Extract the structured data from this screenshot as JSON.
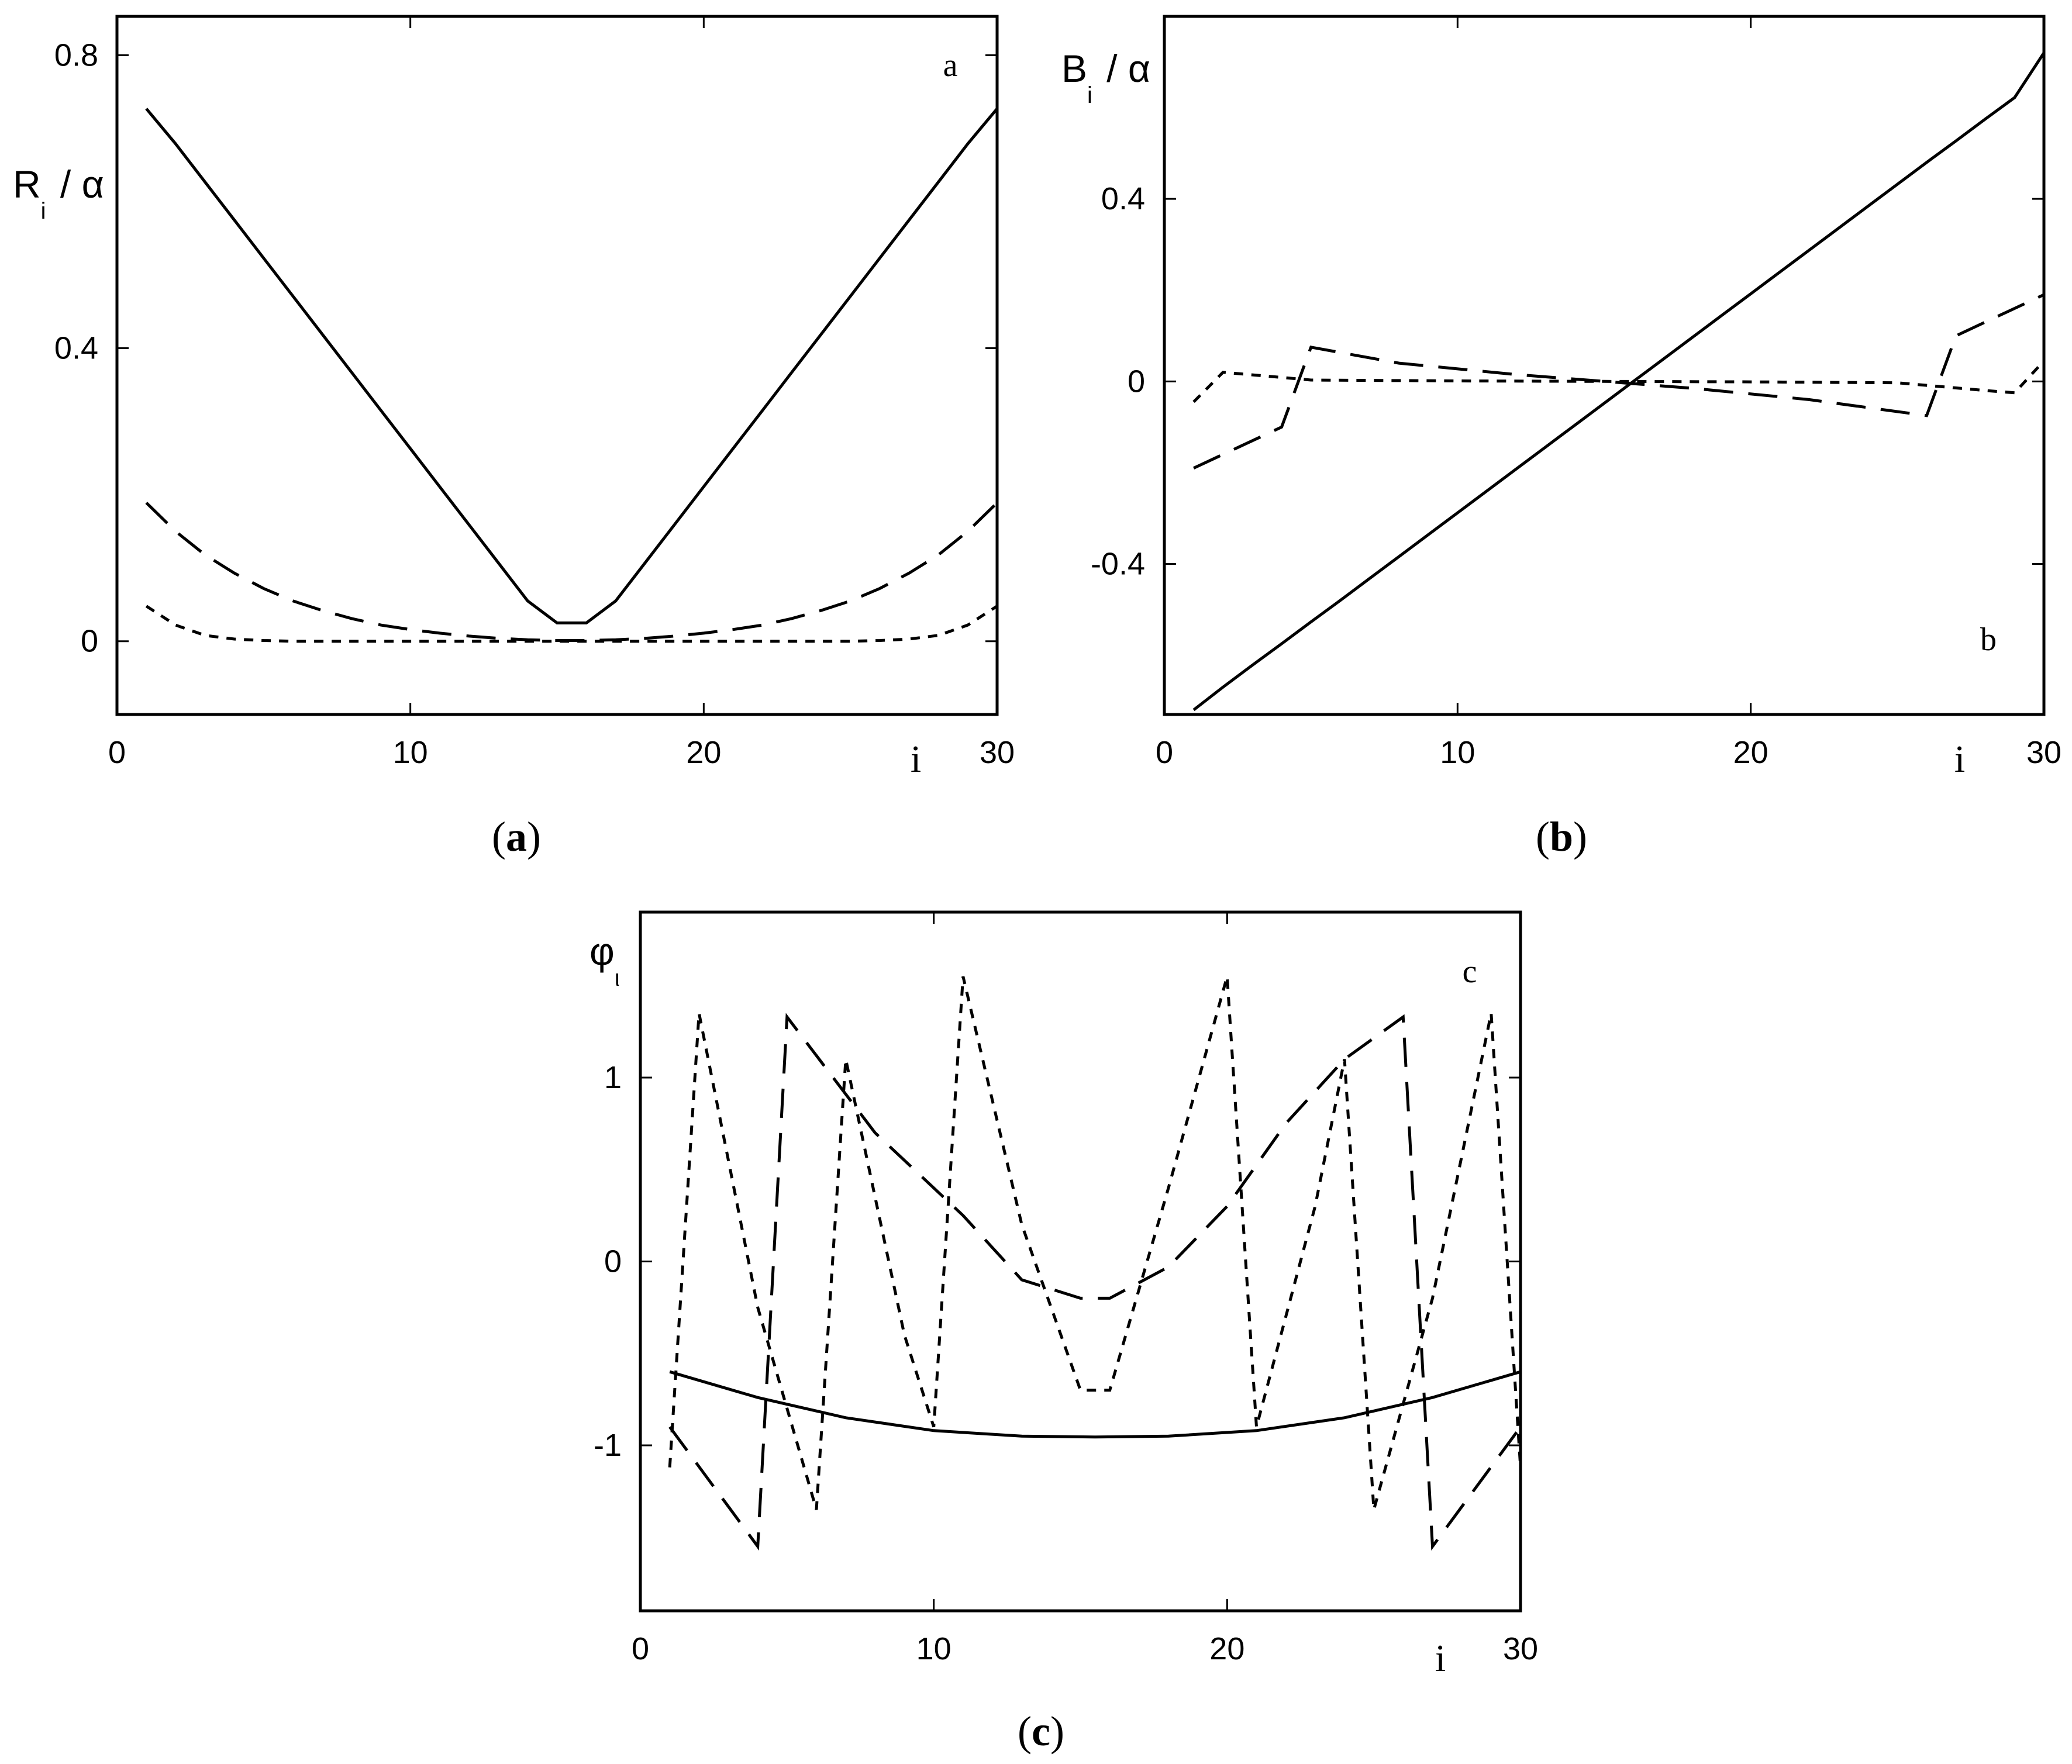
{
  "chart_data": [
    {
      "type": "line",
      "panel_label": "a",
      "caption": "a",
      "ylabel": "R",
      "ylabel_sub": "i",
      "ylabel_rest": "/ α",
      "xlabel": "i",
      "xlim": [
        0,
        30
      ],
      "ylim": [
        -0.1,
        0.853
      ],
      "xticks": [
        "0",
        "10",
        "20",
        "30"
      ],
      "yticks": [
        "0",
        "0.4",
        "0.8"
      ],
      "grid": false,
      "series": [
        {
          "style": "solid",
          "x": [
            1,
            2,
            3,
            4,
            5,
            6,
            7,
            8,
            9,
            10,
            11,
            12,
            13,
            14,
            15,
            16,
            17,
            18,
            19,
            20,
            21,
            22,
            23,
            24,
            25,
            26,
            27,
            28,
            29,
            30
          ],
          "y": [
            0.727,
            0.679,
            0.627,
            0.575,
            0.523,
            0.471,
            0.419,
            0.367,
            0.315,
            0.263,
            0.211,
            0.159,
            0.107,
            0.055,
            0.025,
            0.025,
            0.055,
            0.107,
            0.159,
            0.211,
            0.263,
            0.315,
            0.367,
            0.419,
            0.471,
            0.523,
            0.575,
            0.627,
            0.679,
            0.727
          ]
        },
        {
          "style": "long-dash",
          "x": [
            1,
            2,
            3,
            4,
            5,
            6,
            7,
            8,
            9,
            10,
            11,
            12,
            13,
            14,
            15,
            16,
            17,
            18,
            19,
            20,
            21,
            22,
            23,
            24,
            25,
            26,
            27,
            28,
            29,
            30
          ],
          "y": [
            0.189,
            0.15,
            0.118,
            0.093,
            0.072,
            0.055,
            0.042,
            0.031,
            0.022,
            0.016,
            0.011,
            0.007,
            0.004,
            0.002,
            0.001,
            0.001,
            0.002,
            0.004,
            0.007,
            0.011,
            0.016,
            0.022,
            0.031,
            0.042,
            0.055,
            0.072,
            0.093,
            0.118,
            0.15,
            0.189
          ]
        },
        {
          "style": "short-dash",
          "x": [
            1,
            2,
            3,
            4,
            5,
            6,
            7,
            8,
            9,
            10,
            11,
            12,
            13,
            14,
            15,
            16,
            17,
            18,
            19,
            20,
            21,
            22,
            23,
            24,
            25,
            26,
            27,
            28,
            29,
            30
          ],
          "y": [
            0.048,
            0.022,
            0.008,
            0.003,
            0.001,
            0,
            0,
            0,
            0,
            0,
            0,
            0,
            0,
            0,
            0,
            0,
            0,
            0,
            0,
            0,
            0,
            0,
            0,
            0,
            0,
            0.001,
            0.003,
            0.008,
            0.022,
            0.048
          ]
        }
      ]
    },
    {
      "type": "line",
      "panel_label": "b",
      "caption": "b",
      "ylabel": "B",
      "ylabel_sub": "i",
      "ylabel_rest": "/ α",
      "xlabel": "i",
      "xlim": [
        0,
        30
      ],
      "ylim": [
        -0.73,
        0.8
      ],
      "xticks": [
        "0",
        "10",
        "20",
        "30"
      ],
      "yticks": [
        "-0.4",
        "0",
        "0.4"
      ],
      "grid": false,
      "series": [
        {
          "style": "solid",
          "x": [
            1,
            2,
            3,
            4,
            5,
            6,
            7,
            8,
            9,
            10,
            11,
            12,
            13,
            14,
            15,
            16,
            17,
            18,
            19,
            20,
            21,
            22,
            23,
            24,
            25,
            26,
            27,
            28,
            29,
            30
          ],
          "y": [
            -0.72,
            -0.67,
            -0.622,
            -0.575,
            -0.527,
            -0.48,
            -0.432,
            -0.384,
            -0.336,
            -0.288,
            -0.24,
            -0.192,
            -0.144,
            -0.096,
            -0.048,
            0.0,
            0.048,
            0.096,
            0.144,
            0.192,
            0.24,
            0.288,
            0.336,
            0.384,
            0.432,
            0.48,
            0.527,
            0.575,
            0.622,
            0.72
          ]
        },
        {
          "style": "long-dash",
          "x": [
            1,
            4,
            5,
            8,
            12,
            14,
            16,
            18,
            22,
            26,
            27,
            30
          ],
          "y": [
            -0.19,
            -0.1,
            0.075,
            0.04,
            0.015,
            0.005,
            -0.005,
            -0.015,
            -0.04,
            -0.075,
            0.1,
            0.19
          ]
        },
        {
          "style": "short-dash",
          "x": [
            1,
            2,
            5,
            10,
            15,
            20,
            25,
            28,
            29,
            30
          ],
          "y": [
            -0.045,
            0.02,
            0.003,
            0.001,
            0,
            -0.001,
            -0.003,
            -0.02,
            -0.025,
            0.045
          ]
        }
      ]
    },
    {
      "type": "line",
      "panel_label": "c",
      "caption": "c",
      "ylabel": "φ",
      "ylabel_sub": "ι",
      "xlabel": "i",
      "xlim": [
        0,
        30
      ],
      "ylim": [
        -1.9,
        1.9
      ],
      "xticks": [
        "0",
        "10",
        "20",
        "30"
      ],
      "yticks": [
        "-1",
        "0",
        "1"
      ],
      "grid": false,
      "series": [
        {
          "style": "solid",
          "x": [
            1,
            4,
            7,
            10,
            13,
            15.5,
            18,
            21,
            24,
            27,
            30
          ],
          "y": [
            -0.6,
            -0.74,
            -0.85,
            -0.92,
            -0.95,
            -0.955,
            -0.95,
            -0.92,
            -0.85,
            -0.74,
            -0.6
          ]
        },
        {
          "style": "long-dash",
          "x": [
            1,
            4,
            5,
            8,
            11,
            13,
            15,
            16,
            18,
            20,
            22,
            24,
            26,
            27,
            30
          ],
          "y": [
            -0.9,
            -1.55,
            1.33,
            0.7,
            0.25,
            -0.1,
            -0.2,
            -0.2,
            -0.03,
            0.3,
            0.75,
            1.1,
            1.33,
            -1.55,
            -0.9
          ]
        },
        {
          "style": "short-dash",
          "x": [
            1,
            2,
            4,
            6,
            7,
            9,
            10,
            11,
            13,
            15,
            16,
            18,
            20,
            21,
            23,
            24,
            25,
            27,
            29,
            30
          ],
          "y": [
            -1.12,
            1.35,
            -0.25,
            -1.35,
            1.1,
            -0.4,
            -0.9,
            1.55,
            0.2,
            -0.7,
            -0.7,
            0.4,
            1.55,
            -0.9,
            0.3,
            1.1,
            -1.35,
            -0.2,
            1.35,
            -1.12
          ]
        }
      ]
    }
  ]
}
